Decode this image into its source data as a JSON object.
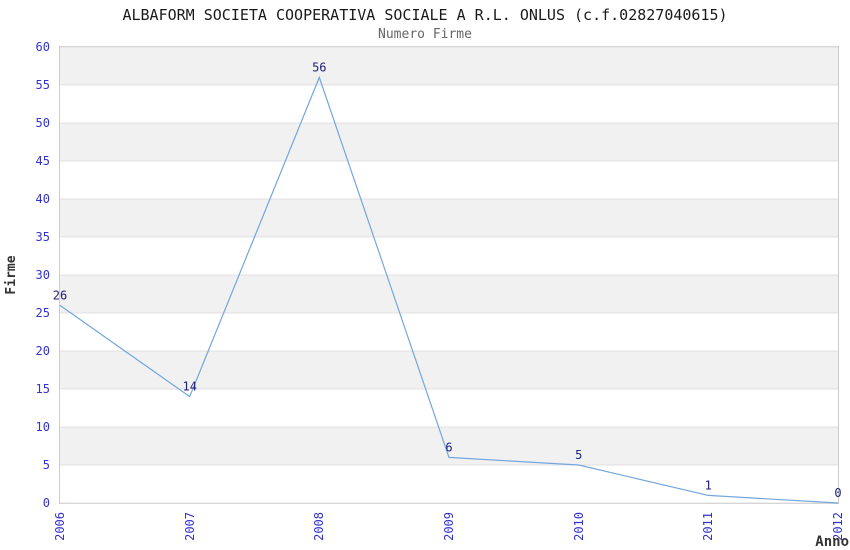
{
  "chart_data": {
    "type": "line",
    "title": "ALBAFORM SOCIETA COOPERATIVA SOCIALE A R.L. ONLUS (c.f.02827040615)",
    "subtitle": "Numero Firme",
    "xlabel": "Anno",
    "ylabel": "Firme",
    "categories": [
      "2006",
      "2007",
      "2008",
      "2009",
      "2010",
      "2011",
      "2012"
    ],
    "values": [
      26,
      14,
      56,
      6,
      5,
      1,
      0
    ],
    "series_name": "Numero Firme",
    "ylim": [
      0,
      60
    ],
    "ytick_step": 5,
    "yticks": [
      0,
      5,
      10,
      15,
      20,
      25,
      30,
      35,
      40,
      45,
      50,
      55,
      60
    ],
    "grid": "horizontal-bands-every-5",
    "legend": "none",
    "data_labels": "shown-above-points",
    "colors": {
      "line": "#74a6dc",
      "tick_label": "#3232cd",
      "value_label": "#20207a",
      "band": "#f1f1f1",
      "grid_line": "#e0e0e0",
      "plot_border": "#cccccc",
      "title": "#1a1a1a",
      "subtitle": "#666666",
      "axis_title": "#333333",
      "background": "#ffffff"
    }
  }
}
